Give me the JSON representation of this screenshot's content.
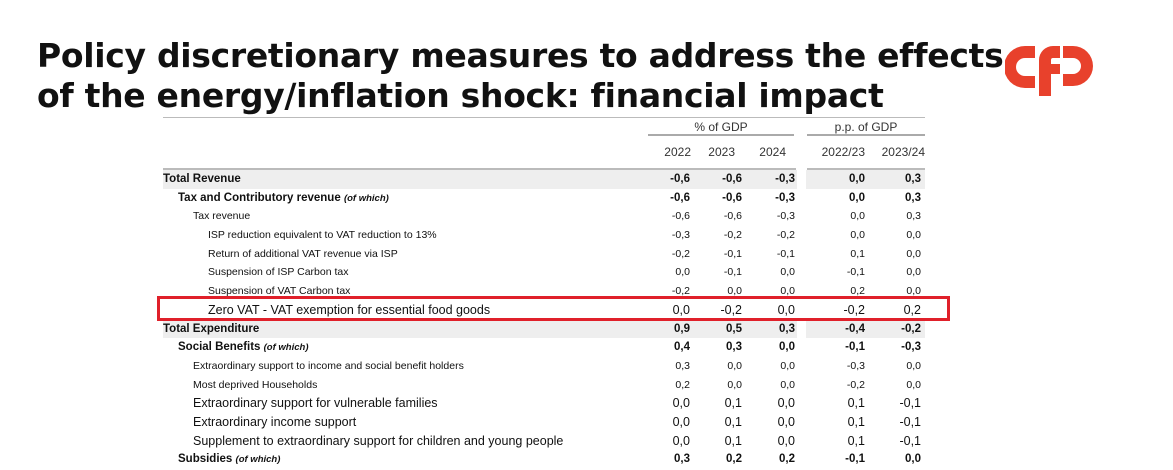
{
  "title_line1": "Policy discretionary measures to address the effects",
  "title_line2": "of the energy/inflation shock: financial impact",
  "logo_text": "cfp",
  "table": {
    "group_headers": [
      "% of GDP",
      "p.p. of GDP"
    ],
    "columns": [
      "2022",
      "2023",
      "2024",
      "2022/23",
      "2023/24"
    ],
    "rows": [
      {
        "label": "Total Revenue",
        "note": "",
        "values": [
          "-0,6",
          "-0,6",
          "-0,3",
          "0,0",
          "0,3"
        ]
      },
      {
        "label": "Tax and Contributory revenue ",
        "note": "(of which)",
        "values": [
          "-0,6",
          "-0,6",
          "-0,3",
          "0,0",
          "0,3"
        ]
      },
      {
        "label": "Tax revenue",
        "note": "",
        "values": [
          "-0,6",
          "-0,6",
          "-0,3",
          "0,0",
          "0,3"
        ]
      },
      {
        "label": "ISP reduction equivalent to VAT reduction to 13%",
        "note": "",
        "values": [
          "-0,3",
          "-0,2",
          "-0,2",
          "0,0",
          "0,0"
        ]
      },
      {
        "label": "Return of additional VAT revenue via ISP",
        "note": "",
        "values": [
          "-0,2",
          "-0,1",
          "-0,1",
          "0,1",
          "0,0"
        ]
      },
      {
        "label": "Suspension of ISP Carbon tax",
        "note": "",
        "values": [
          "0,0",
          "-0,1",
          "0,0",
          "-0,1",
          "0,0"
        ]
      },
      {
        "label": "Suspension of VAT Carbon tax",
        "note": "",
        "values": [
          "-0,2",
          "0,0",
          "0,0",
          "0,2",
          "0,0"
        ]
      },
      {
        "label": "Zero VAT - VAT exemption for essential food goods",
        "note": "",
        "values": [
          "0,0",
          "-0,2",
          "0,0",
          "-0,2",
          "0,2"
        ]
      },
      {
        "label": "Total Expenditure",
        "note": "",
        "values": [
          "0,9",
          "0,5",
          "0,3",
          "-0,4",
          "-0,2"
        ]
      },
      {
        "label": "Social Benefits ",
        "note": "(of which)",
        "values": [
          "0,4",
          "0,3",
          "0,0",
          "-0,1",
          "-0,3"
        ]
      },
      {
        "label": "Extraordinary support to income and social benefit holders",
        "note": "",
        "values": [
          "0,3",
          "0,0",
          "0,0",
          "-0,3",
          "0,0"
        ]
      },
      {
        "label": "Most deprived Households",
        "note": "",
        "values": [
          "0,2",
          "0,0",
          "0,0",
          "-0,2",
          "0,0"
        ]
      },
      {
        "label": "Extraordinary support for vulnerable families",
        "note": "",
        "values": [
          "0,0",
          "0,1",
          "0,0",
          "0,1",
          "-0,1"
        ]
      },
      {
        "label": "Extraordinary income support",
        "note": "",
        "values": [
          "0,0",
          "0,1",
          "0,0",
          "0,1",
          "-0,1"
        ]
      },
      {
        "label": "Supplement to extraordinary support for children and young people",
        "note": "",
        "values": [
          "0,0",
          "0,1",
          "0,0",
          "0,1",
          "-0,1"
        ]
      },
      {
        "label": "Subsidies ",
        "note": "(of which)",
        "values": [
          "0,3",
          "0,2",
          "0,2",
          "-0,1",
          "0,0"
        ]
      }
    ]
  },
  "colors": {
    "accent": "#e0202a",
    "logo": "#e8412c"
  }
}
